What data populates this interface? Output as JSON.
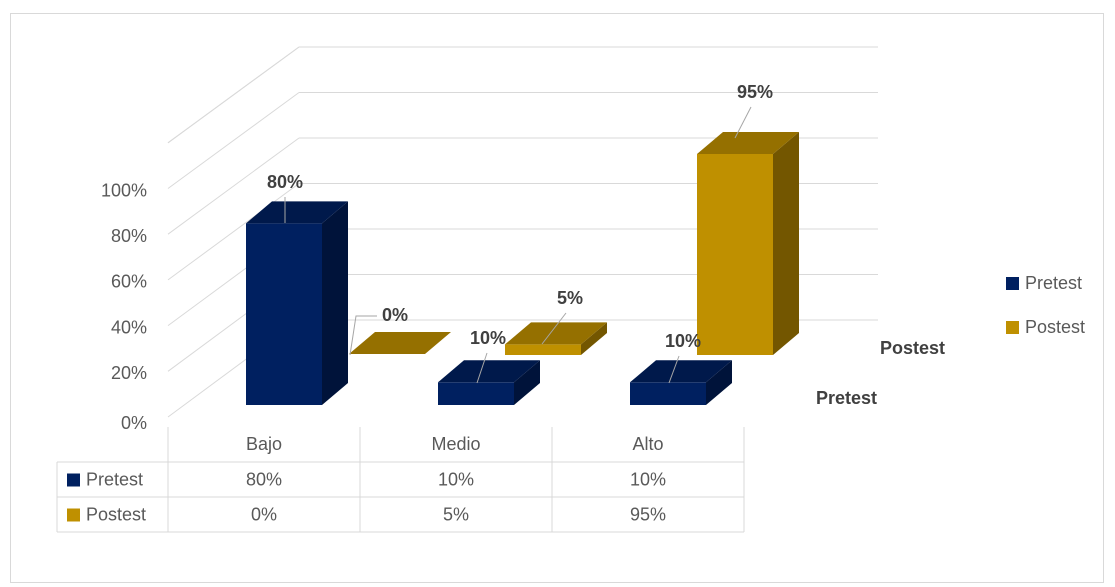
{
  "chart_data": {
    "type": "bar",
    "categories": [
      "Bajo",
      "Medio",
      "Alto"
    ],
    "series": [
      {
        "name": "Pretest",
        "values": [
          80,
          10,
          10
        ],
        "labels": [
          "80%",
          "10%",
          "10%"
        ],
        "color": "#002060"
      },
      {
        "name": "Postest",
        "values": [
          0,
          5,
          95
        ],
        "labels": [
          "0%",
          "5%",
          "95%"
        ],
        "color": "#BF9000"
      }
    ],
    "y_ticks": [
      "0%",
      "20%",
      "40%",
      "60%",
      "80%",
      "100%"
    ],
    "ylim": [
      0,
      100
    ],
    "depth_labels": [
      "Postest",
      "Pretest"
    ],
    "legend": [
      "Pretest",
      "Postest"
    ],
    "legend_position": "right",
    "data_table": true,
    "grid": true,
    "style": "3d-column"
  }
}
